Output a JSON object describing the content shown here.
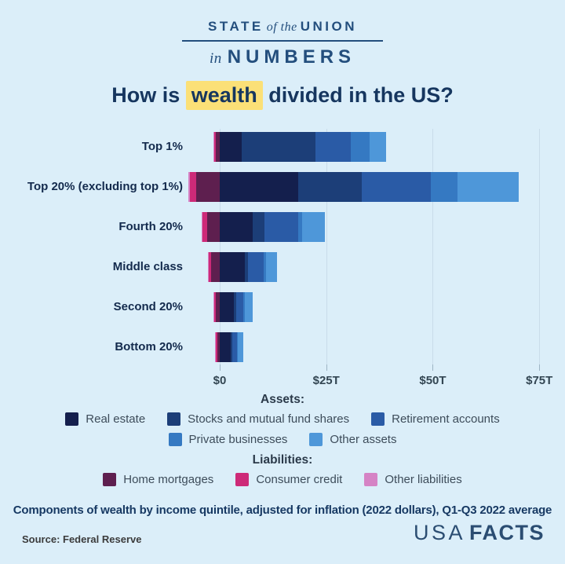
{
  "header": {
    "brand_word1": "STATE",
    "brand_word2": "of the",
    "brand_word3": "UNION",
    "brand_line2_pre": "in",
    "brand_line2_main": "NUMBERS"
  },
  "title": {
    "prefix": "How is ",
    "highlight": "wealth",
    "suffix": " divided in the US?",
    "highlight_color": "#fbe077"
  },
  "chart_data": {
    "type": "bar",
    "variant": "horizontal_diverging_stacked",
    "unit": "trillions of USD",
    "categories": [
      "Top 1%",
      "Top 20% (excluding top 1%)",
      "Fourth 20%",
      "Middle class",
      "Second 20%",
      "Bottom 20%"
    ],
    "asset_series": [
      {
        "name": "Real estate",
        "color": "#141f4d",
        "values": [
          5.2,
          18.4,
          7.7,
          5.9,
          3.3,
          2.6
        ]
      },
      {
        "name": "Stocks and mutual fund shares",
        "color": "#1c3e78",
        "values": [
          17.2,
          14.9,
          2.8,
          0.7,
          0.5,
          0.3
        ]
      },
      {
        "name": "Retirement accounts",
        "color": "#2a5ba6",
        "values": [
          8.3,
          16.2,
          7.9,
          3.7,
          1.7,
          1.1
        ]
      },
      {
        "name": "Private businesses",
        "color": "#3579c2",
        "values": [
          4.5,
          6.3,
          1.0,
          0.6,
          0.4,
          0.2
        ]
      },
      {
        "name": "Other assets",
        "color": "#4e97d9",
        "values": [
          3.8,
          14.3,
          5.2,
          2.6,
          1.8,
          1.3
        ]
      }
    ],
    "liability_series": [
      {
        "name": "Home mortgages",
        "color": "#5e1f4f",
        "values": [
          0.9,
          5.5,
          3.0,
          2.0,
          0.9,
          0.5
        ]
      },
      {
        "name": "Consumer credit",
        "color": "#cd2a78",
        "values": [
          0.4,
          1.5,
          1.0,
          0.7,
          0.5,
          0.5
        ]
      },
      {
        "name": "Other liabilities",
        "color": "#d583c5",
        "values": [
          0.2,
          0.4,
          0.2,
          0.1,
          0.1,
          0.1
        ]
      }
    ],
    "x_axis": {
      "ticks": [
        {
          "label": "$0",
          "value": 0
        },
        {
          "label": "$25T",
          "value": 25
        },
        {
          "label": "$50T",
          "value": 50
        },
        {
          "label": "$75T",
          "value": 75
        }
      ],
      "min": -8.1,
      "max": 81
    },
    "grid": true,
    "legend_position": "bottom"
  },
  "legend": {
    "assets_label": "Assets:",
    "liabilities_label": "Liabilities:"
  },
  "caption": "Components of wealth by income quintile, adjusted for inflation (2022 dollars), Q1-Q3 2022 average",
  "source": "Source: Federal Reserve",
  "logo": {
    "part1": "USA",
    "part2": "FACTS"
  },
  "colors": {
    "background": "#dbeef9",
    "brand_navy": "#234e7d",
    "title_navy": "#16365f",
    "gridline": "#c9dcea",
    "tick_text": "#334653",
    "row_label": "#132a4d",
    "legend_text": "#3d4c5a",
    "caption_navy": "#173963"
  }
}
